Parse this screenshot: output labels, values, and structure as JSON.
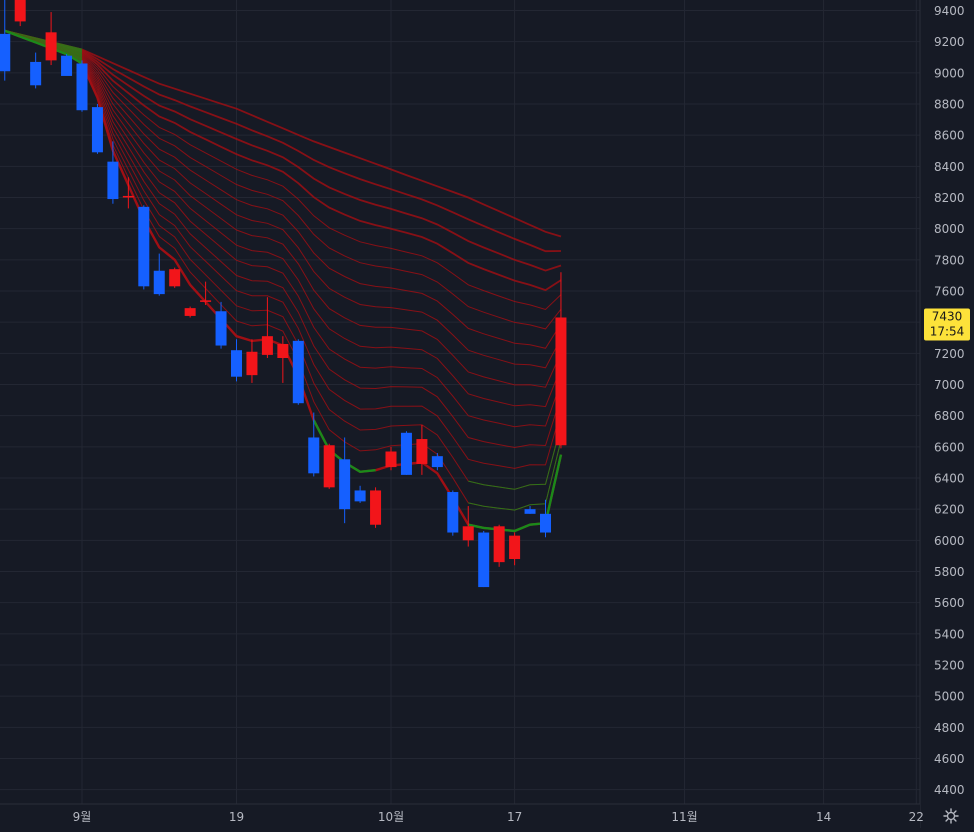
{
  "chart_data": {
    "type": "candlestick",
    "y_ticks": [
      9400,
      9200,
      9000,
      8800,
      8600,
      8400,
      8200,
      8000,
      7800,
      7600,
      7400,
      7200,
      7000,
      6800,
      6600,
      6400,
      6200,
      6000,
      5800,
      5600,
      5400,
      5200,
      5000,
      4800,
      4600,
      4400
    ],
    "ylim": [
      4320,
      9460
    ],
    "x_ticks": [
      {
        "label": "9월",
        "day": 0
      },
      {
        "label": "19",
        "day": 10
      },
      {
        "label": "10월",
        "day": 20
      },
      {
        "label": "17",
        "day": 28
      },
      {
        "label": "11월",
        "day": 39
      },
      {
        "label": "14",
        "day": 48
      },
      {
        "label": "22",
        "day": 54
      }
    ],
    "colors": {
      "background": "#161a25",
      "grid": "#232733",
      "up": "#f2151a",
      "down": "#1560ff",
      "ribbon_bear": "#a00f14",
      "ribbon_bull": "#1a8a1a",
      "axis_text": "#b6b9c2",
      "price_tag_bg": "#fde23a",
      "price_tag_text": "#1a1a1a"
    },
    "candles": [
      {
        "d": -5,
        "o": 9250,
        "h": 9500,
        "l": 8950,
        "c": 9010
      },
      {
        "d": -4,
        "o": 9330,
        "h": 9500,
        "l": 9300,
        "c": 9470
      },
      {
        "d": -3,
        "o": 9070,
        "h": 9130,
        "l": 8900,
        "c": 8920
      },
      {
        "d": -2,
        "o": 9080,
        "h": 9390,
        "l": 9050,
        "c": 9260
      },
      {
        "d": -1,
        "o": 9110,
        "h": 9120,
        "l": 8990,
        "c": 8980
      },
      {
        "d": 0,
        "o": 9060,
        "h": 9080,
        "l": 8750,
        "c": 8760
      },
      {
        "d": 1,
        "o": 8780,
        "h": 8800,
        "l": 8480,
        "c": 8490
      },
      {
        "d": 2,
        "o": 8430,
        "h": 8560,
        "l": 8160,
        "c": 8190
      },
      {
        "d": 3,
        "o": 8200,
        "h": 8330,
        "l": 8130,
        "c": 8210
      },
      {
        "d": 4,
        "o": 8140,
        "h": 8150,
        "l": 7610,
        "c": 7630
      },
      {
        "d": 5,
        "o": 7730,
        "h": 7840,
        "l": 7570,
        "c": 7580
      },
      {
        "d": 6,
        "o": 7630,
        "h": 7750,
        "l": 7620,
        "c": 7740
      },
      {
        "d": 7,
        "o": 7440,
        "h": 7500,
        "l": 7430,
        "c": 7490
      },
      {
        "d": 8,
        "o": 7530,
        "h": 7660,
        "l": 7510,
        "c": 7540
      },
      {
        "d": 9,
        "o": 7470,
        "h": 7530,
        "l": 7230,
        "c": 7250
      },
      {
        "d": 10,
        "o": 7220,
        "h": 7290,
        "l": 7020,
        "c": 7050
      },
      {
        "d": 11,
        "o": 7060,
        "h": 7290,
        "l": 7010,
        "c": 7210
      },
      {
        "d": 12,
        "o": 7190,
        "h": 7560,
        "l": 7170,
        "c": 7310
      },
      {
        "d": 13,
        "o": 7170,
        "h": 7310,
        "l": 7010,
        "c": 7260
      },
      {
        "d": 14,
        "o": 7280,
        "h": 7290,
        "l": 6870,
        "c": 6880
      },
      {
        "d": 15,
        "o": 6660,
        "h": 6820,
        "l": 6410,
        "c": 6430
      },
      {
        "d": 16,
        "o": 6340,
        "h": 6620,
        "l": 6330,
        "c": 6610
      },
      {
        "d": 17,
        "o": 6520,
        "h": 6660,
        "l": 6110,
        "c": 6200
      },
      {
        "d": 18,
        "o": 6320,
        "h": 6350,
        "l": 6240,
        "c": 6250
      },
      {
        "d": 19,
        "o": 6100,
        "h": 6340,
        "l": 6080,
        "c": 6320
      },
      {
        "d": 20,
        "o": 6470,
        "h": 6600,
        "l": 6450,
        "c": 6570
      },
      {
        "d": 21,
        "o": 6690,
        "h": 6700,
        "l": 6420,
        "c": 6420
      },
      {
        "d": 22,
        "o": 6490,
        "h": 6740,
        "l": 6420,
        "c": 6650
      },
      {
        "d": 23,
        "o": 6540,
        "h": 6560,
        "l": 6450,
        "c": 6470
      },
      {
        "d": 24,
        "o": 6310,
        "h": 6320,
        "l": 6030,
        "c": 6050
      },
      {
        "d": 25,
        "o": 6000,
        "h": 6220,
        "l": 5960,
        "c": 6090
      },
      {
        "d": 26,
        "o": 6050,
        "h": 6060,
        "l": 5700,
        "c": 5700
      },
      {
        "d": 27,
        "o": 5860,
        "h": 6100,
        "l": 5830,
        "c": 6090
      },
      {
        "d": 28,
        "o": 5880,
        "h": 6050,
        "l": 5840,
        "c": 6030
      },
      {
        "d": 29,
        "o": 6200,
        "h": 6220,
        "l": 6170,
        "c": 6170
      },
      {
        "d": 30,
        "o": 6170,
        "h": 6260,
        "l": 6020,
        "c": 6050
      },
      {
        "d": 31,
        "o": 6610,
        "h": 7720,
        "l": 6590,
        "c": 7430
      }
    ],
    "ribbon": {
      "slow_anchors": [
        [
          -5,
          9270
        ],
        [
          0,
          9150
        ],
        [
          5,
          8930
        ],
        [
          10,
          8770
        ],
        [
          15,
          8560
        ],
        [
          20,
          8380
        ],
        [
          25,
          8200
        ],
        [
          30,
          7980
        ],
        [
          31,
          7950
        ]
      ],
      "fast_anchors": [
        [
          -5,
          9270
        ],
        [
          -1,
          9120
        ],
        [
          0,
          9060
        ],
        [
          1,
          8840
        ],
        [
          2,
          8500
        ],
        [
          3,
          8280
        ],
        [
          4,
          8060
        ],
        [
          5,
          7880
        ],
        [
          6,
          7800
        ],
        [
          7,
          7640
        ],
        [
          8,
          7530
        ],
        [
          9,
          7420
        ],
        [
          10,
          7310
        ],
        [
          11,
          7280
        ],
        [
          12,
          7290
        ],
        [
          13,
          7250
        ],
        [
          14,
          7050
        ],
        [
          15,
          6770
        ],
        [
          16,
          6580
        ],
        [
          17,
          6500
        ],
        [
          18,
          6440
        ],
        [
          19,
          6450
        ],
        [
          20,
          6480
        ],
        [
          21,
          6490
        ],
        [
          22,
          6500
        ],
        [
          23,
          6430
        ],
        [
          24,
          6270
        ],
        [
          25,
          6100
        ],
        [
          26,
          6080
        ],
        [
          27,
          6070
        ],
        [
          28,
          6060
        ],
        [
          29,
          6100
        ],
        [
          30,
          6110
        ],
        [
          31,
          6550
        ]
      ],
      "line_count": 16,
      "bull_segments": [
        [
          -5,
          0,
          16
        ],
        [
          15,
          19,
          1
        ],
        [
          25,
          31,
          3
        ]
      ]
    },
    "last_price": {
      "value": 7430,
      "value_label": "7430",
      "time_label": "17:54"
    },
    "settings_icon": "gear-icon"
  }
}
